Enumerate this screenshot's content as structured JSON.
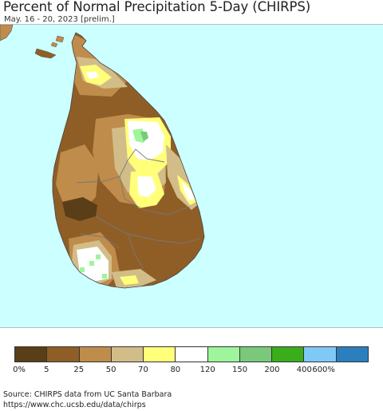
{
  "header": {
    "title": "Percent of Normal Precipitation 5-Day (CHIRPS)",
    "subtitle": "May. 16 - 20, 2023 [prelim.]"
  },
  "map": {
    "ocean_color": "#ccffff",
    "boundary_color": "#777777"
  },
  "legend": {
    "colors": [
      "#5a3e18",
      "#8f5e26",
      "#bf8c4b",
      "#d2bd89",
      "#ffff7a",
      "#ffffff",
      "#9ef59b",
      "#7ac97a",
      "#3aad1b",
      "#7fc9f7",
      "#2b7fbf"
    ],
    "labels": [
      "0%",
      "5",
      "25",
      "50",
      "70",
      "80",
      "120",
      "150",
      "200",
      "400",
      "600%"
    ]
  },
  "source": {
    "line1": "Source: CHIRPS data from UC Santa Barbara",
    "line2": "https://www.chc.ucsb.edu/data/chirps"
  }
}
